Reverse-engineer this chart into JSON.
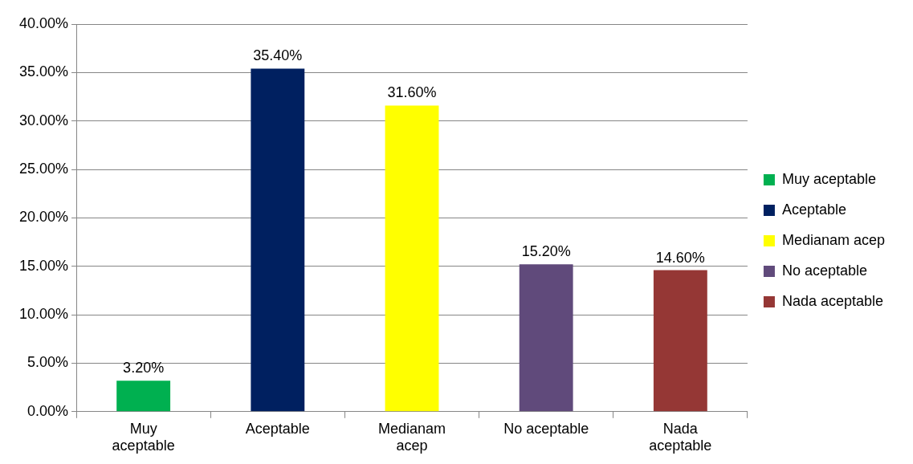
{
  "chart_data": {
    "type": "bar",
    "categories": [
      "Muy aceptable",
      "Aceptable",
      "Medianam acep",
      "No aceptable",
      "Nada aceptable"
    ],
    "series": [
      {
        "name": "Muy aceptable",
        "color": "#00b050",
        "values": [
          3.2,
          null,
          null,
          null,
          null
        ],
        "value_labels": [
          "3.20%",
          null,
          null,
          null,
          null
        ]
      },
      {
        "name": "Aceptable",
        "color": "#002060",
        "values": [
          null,
          35.4,
          null,
          null,
          null
        ],
        "value_labels": [
          null,
          "35.40%",
          null,
          null,
          null
        ]
      },
      {
        "name": "Medianam acep",
        "color": "#ffff00",
        "values": [
          null,
          null,
          31.6,
          null,
          null
        ],
        "value_labels": [
          null,
          null,
          "31.60%",
          null,
          null
        ]
      },
      {
        "name": "No aceptable",
        "color": "#604a7b",
        "values": [
          null,
          null,
          null,
          15.2,
          null
        ],
        "value_labels": [
          null,
          null,
          null,
          "15.20%",
          null
        ]
      },
      {
        "name": "Nada aceptable",
        "color": "#953735",
        "values": [
          null,
          null,
          null,
          null,
          14.6
        ],
        "value_labels": [
          null,
          null,
          null,
          null,
          "14.60%"
        ]
      }
    ],
    "ylim": [
      0,
      40
    ],
    "yticks": [
      {
        "value": 0,
        "label": "0.00%"
      },
      {
        "value": 5,
        "label": "5.00%"
      },
      {
        "value": 10,
        "label": "10.00%"
      },
      {
        "value": 15,
        "label": "15.00%"
      },
      {
        "value": 20,
        "label": "20.00%"
      },
      {
        "value": 25,
        "label": "25.00%"
      },
      {
        "value": 30,
        "label": "30.00%"
      },
      {
        "value": 35,
        "label": "35.00%"
      },
      {
        "value": 40,
        "label": "40.00%"
      }
    ],
    "grid": "y",
    "legend": "right"
  }
}
